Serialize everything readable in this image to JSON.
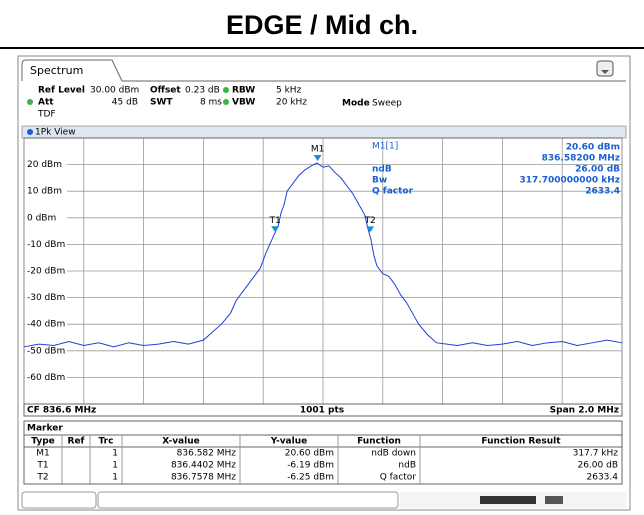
{
  "title": "EDGE / Mid ch.",
  "tab": "Spectrum",
  "settings": {
    "ref_level_label": "Ref Level",
    "ref_level": "30.00 dBm",
    "offset_label": "Offset",
    "offset": "0.23 dB",
    "rbw_label": "RBW",
    "rbw": "5 kHz",
    "att_label": "Att",
    "att": "45 dB",
    "swt_label": "SWT",
    "swt": "8 ms",
    "vbw_label": "VBW",
    "vbw": "20 kHz",
    "mode_label": "Mode",
    "mode": "Sweep",
    "tdf": "TDF"
  },
  "view": "1Pk View",
  "marker_info": {
    "label": "M1[1]",
    "level": "20.60 dBm",
    "freq": "836.58200 MHz",
    "ndb_label": "ndB",
    "ndb": "26.00 dB",
    "bw_label": "Bw",
    "bw": "317.700000000 kHz",
    "q_label": "Q factor",
    "q": "2633.4"
  },
  "chart_data": {
    "type": "line",
    "x": [
      835.6,
      835.65,
      835.7,
      835.75,
      835.8,
      835.85,
      835.9,
      835.95,
      836.0,
      836.05,
      836.1,
      836.15,
      836.2,
      836.23,
      836.26,
      836.29,
      836.31,
      836.33,
      836.35,
      836.37,
      836.39,
      836.41,
      836.43,
      836.45,
      836.46,
      836.47,
      836.48,
      836.5,
      836.52,
      836.54,
      836.56,
      836.58,
      836.6,
      836.62,
      836.64,
      836.66,
      836.68,
      836.7,
      836.72,
      836.74,
      836.75,
      836.76,
      836.77,
      836.78,
      836.8,
      836.82,
      836.84,
      836.86,
      836.88,
      836.9,
      836.92,
      836.95,
      836.98,
      837.05,
      837.1,
      837.15,
      837.2,
      837.25,
      837.3,
      837.35,
      837.4,
      837.45,
      837.5,
      837.55,
      837.6
    ],
    "series": [
      {
        "color": "#1f3fd6",
        "values": [
          -48.5,
          -47.5,
          -48,
          -46.5,
          -48,
          -47,
          -48.5,
          -47,
          -48,
          -47.5,
          -46.5,
          -47.5,
          -46,
          -43,
          -40,
          -36,
          -31,
          -28,
          -25,
          -22,
          -19,
          -13,
          -8,
          -3,
          2,
          5,
          10,
          13,
          16,
          18,
          19.5,
          20.6,
          19,
          19.5,
          17,
          15,
          12,
          9,
          5,
          1,
          -4,
          -8,
          -14,
          -18,
          -21,
          -22,
          -25,
          -29,
          -32,
          -36,
          -40,
          -44,
          -47,
          -48,
          -47,
          -48,
          -47.5,
          -46.5,
          -48,
          -47,
          -46.5,
          -48,
          -47,
          -46,
          -47
        ]
      }
    ],
    "xlim": [
      835.6,
      837.6
    ],
    "ylim": [
      -70,
      30
    ],
    "xticks": [
      835.6,
      835.8,
      836.0,
      836.2,
      836.4,
      836.6,
      836.8,
      837.0,
      837.2,
      837.4,
      837.6
    ],
    "yticks": [
      {
        "value": 20,
        "label": "20 dBm"
      },
      {
        "value": 10,
        "label": "10 dBm"
      },
      {
        "value": 0,
        "label": "0 dBm"
      },
      {
        "value": -10,
        "label": "-10 dBm"
      },
      {
        "value": -20,
        "label": "-20 dBm"
      },
      {
        "value": -30,
        "label": "-30 dBm"
      },
      {
        "value": -40,
        "label": "-40 dBm"
      },
      {
        "value": -50,
        "label": "-50 dBm"
      },
      {
        "value": -60,
        "label": "-60 dBm"
      }
    ],
    "grid": true,
    "markers": [
      {
        "name": "M1",
        "x": 836.582,
        "y": 20.6
      },
      {
        "name": "T1",
        "x": 836.4402,
        "y": -6.19
      },
      {
        "name": "T2",
        "x": 836.7578,
        "y": -6.25
      }
    ],
    "footer": {
      "center_freq": "CF 836.6 MHz",
      "points": "1001 pts",
      "span": "Span 2.0 MHz"
    }
  },
  "marker_table": {
    "title": "Marker",
    "columns": [
      "Type",
      "Ref",
      "Trc",
      "X-value",
      "Y-value",
      "Function",
      "Function Result"
    ],
    "rows": [
      [
        "M1",
        "",
        "1",
        "836.582 MHz",
        "20.60 dBm",
        "ndB down",
        "317.7 kHz"
      ],
      [
        "T1",
        "",
        "1",
        "836.4402 MHz",
        "-6.19 dBm",
        "ndB",
        "26.00 dB"
      ],
      [
        "T2",
        "",
        "1",
        "836.7578 MHz",
        "-6.25 dBm",
        "Q factor",
        "2633.4"
      ]
    ]
  }
}
